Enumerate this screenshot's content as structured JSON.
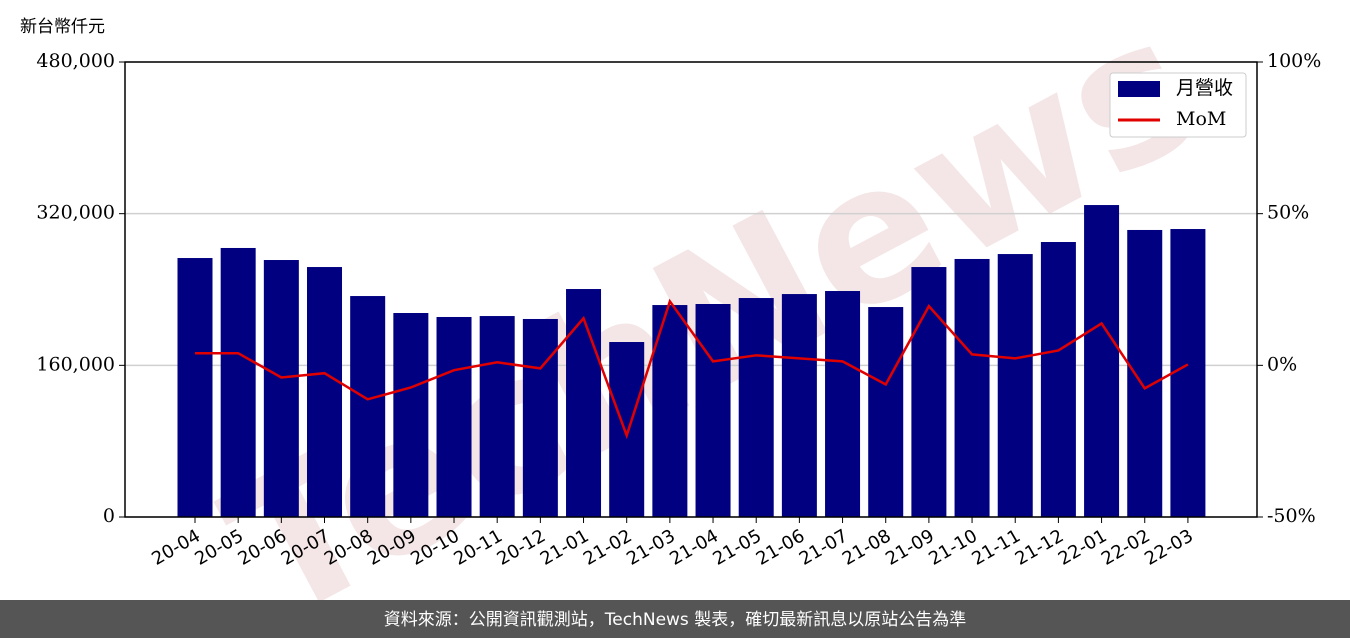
{
  "chart_data": {
    "type": "bar",
    "y_label": "新台幣仟元",
    "watermark": "TechNews",
    "categories": [
      "20-04",
      "20-05",
      "20-06",
      "20-07",
      "20-08",
      "20-09",
      "20-10",
      "20-11",
      "20-12",
      "21-01",
      "21-02",
      "21-03",
      "21-04",
      "21-05",
      "21-06",
      "21-07",
      "21-08",
      "21-09",
      "21-10",
      "21-11",
      "21-12",
      "22-01",
      "22-02",
      "22-03"
    ],
    "series": [
      {
        "name": "月營收",
        "color": "#000080",
        "values": [
          273200,
          283800,
          271100,
          263700,
          233100,
          215200,
          211000,
          212000,
          208900,
          240500,
          184600,
          223600,
          224700,
          231000,
          235200,
          238400,
          221500,
          263700,
          272200,
          277400,
          290100,
          329100,
          302800,
          303800
        ]
      },
      {
        "name": "MoM",
        "type": "line",
        "axis": "y2",
        "color": "#e00000",
        "values": [
          4.0,
          4.0,
          -4.0,
          -2.6,
          -11.2,
          -7.3,
          -1.6,
          1.0,
          -1.0,
          15.5,
          -23.1,
          21.1,
          1.3,
          3.3,
          2.3,
          1.3,
          -6.3,
          19.5,
          3.6,
          2.3,
          4.9,
          13.8,
          -7.6,
          0.3
        ]
      }
    ],
    "ylim": [
      0,
      480000
    ],
    "yticks": [
      0,
      {
        "value": 160000,
        "label": "160,000"
      },
      {
        "value": 320000,
        "label": "320,000"
      },
      {
        "value": 480000,
        "label": "480,000"
      }
    ],
    "y2lim": [
      -50,
      100
    ],
    "y2ticks": [
      {
        "value": -50,
        "label": "-50%"
      },
      {
        "value": 0,
        "label": "0%"
      },
      {
        "value": 50,
        "label": "50%"
      },
      {
        "value": 100,
        "label": "100%"
      }
    ],
    "grid": true,
    "legend": "upper right"
  },
  "footer": "資料來源：公開資訊觀測站，TechNews 製表，確切最新訊息以原站公告為準"
}
